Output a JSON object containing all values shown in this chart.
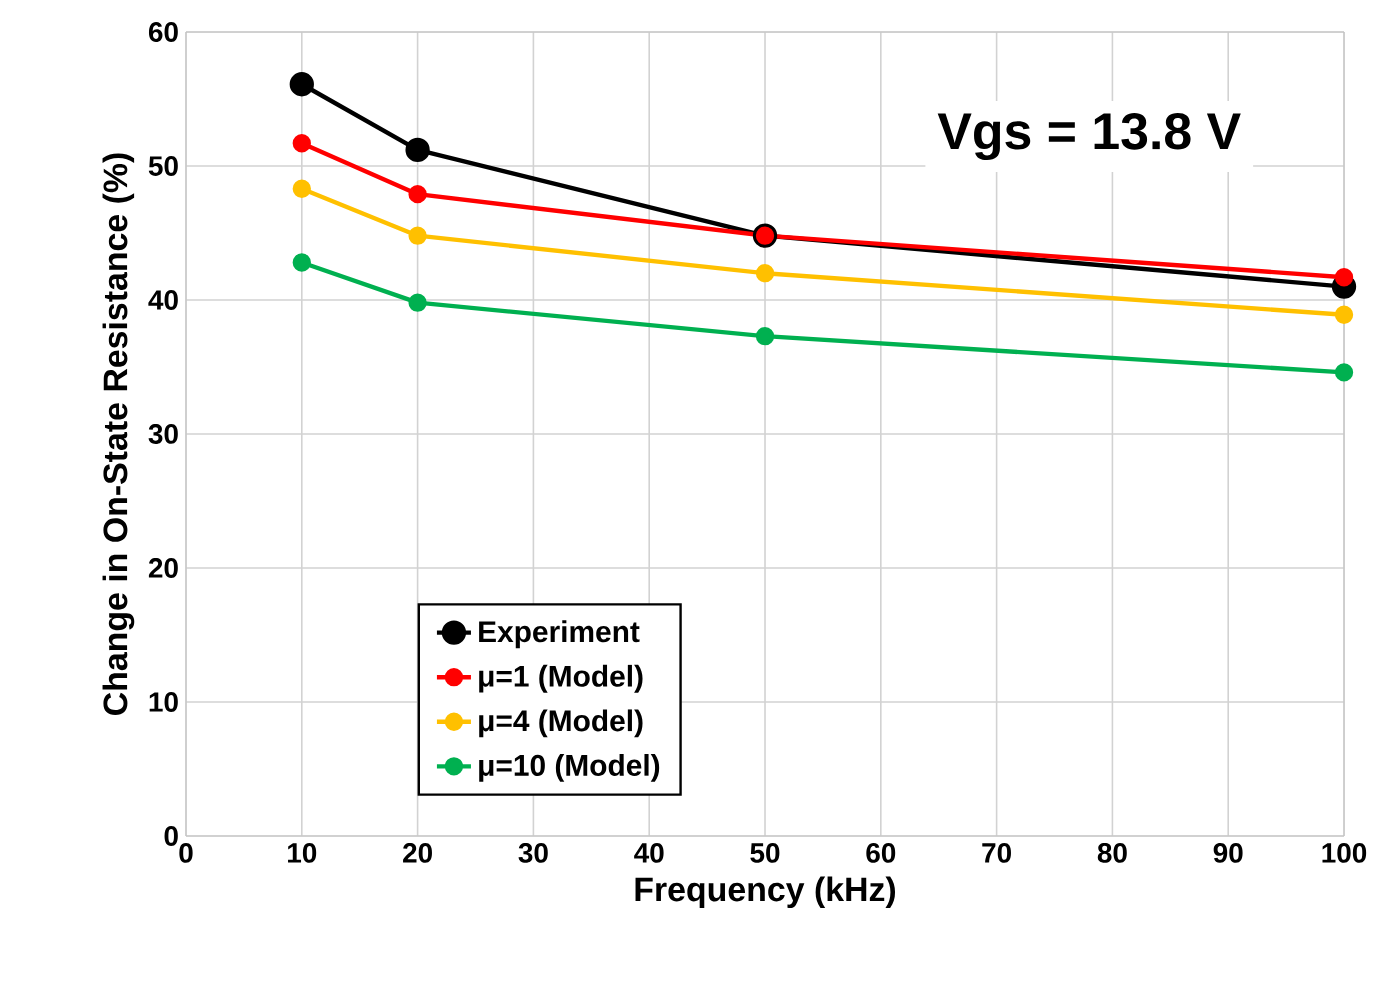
{
  "chart_data": {
    "type": "line",
    "xlabel": "Frequency (kHz)",
    "ylabel": "Change in On-State Resistance (%)",
    "x": [
      10,
      20,
      50,
      100
    ],
    "series": [
      {
        "name": "Experiment",
        "color": "#000000",
        "values": [
          56.1,
          51.2,
          44.8,
          41.0
        ]
      },
      {
        "name": "μ=1 (Model)",
        "color": "#ff0000",
        "values": [
          51.7,
          47.9,
          44.8,
          41.7
        ]
      },
      {
        "name": "μ=4 (Model)",
        "color": "#ffc000",
        "values": [
          48.3,
          44.8,
          42.0,
          38.9
        ]
      },
      {
        "name": "μ=10 (Model)",
        "color": "#00b050",
        "values": [
          42.8,
          39.8,
          37.3,
          34.6
        ]
      }
    ],
    "xlim": [
      0,
      100
    ],
    "ylim": [
      0,
      60
    ],
    "xticks": [
      0,
      10,
      20,
      30,
      40,
      50,
      60,
      70,
      80,
      90,
      100
    ],
    "yticks": [
      0,
      10,
      20,
      30,
      40,
      50,
      60
    ],
    "grid": true,
    "legend": "bottom left",
    "marker": "circle",
    "line_style": "solid",
    "annotations": [
      "Vgs = 13.8 V"
    ]
  }
}
